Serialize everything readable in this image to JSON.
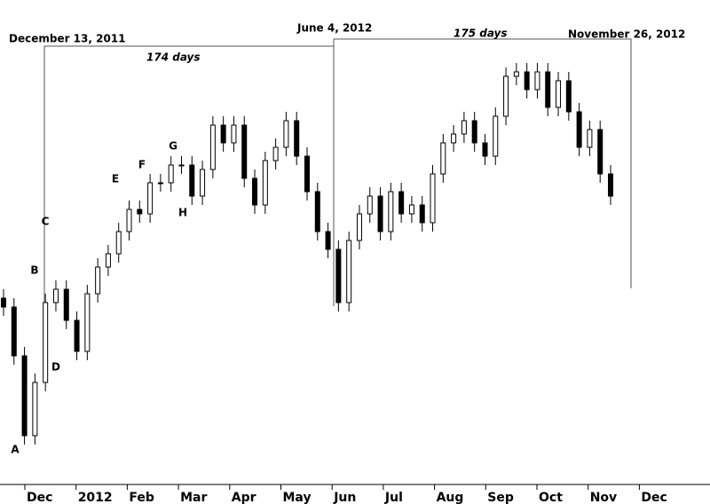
{
  "chart_data": {
    "type": "candlestick",
    "categories": [
      "Dec",
      "2012",
      "Feb",
      "Mar",
      "Apr",
      "May",
      "Jun",
      "Jul",
      "Aug",
      "Sep",
      "Oct",
      "Nov",
      "Dec"
    ],
    "ylim": [
      0,
      109.2
    ],
    "open": [
      42,
      40,
      29,
      11,
      23,
      41,
      44,
      37,
      30,
      43,
      49,
      52,
      57,
      62,
      61,
      68,
      68,
      72,
      72,
      65,
      71,
      81,
      77,
      81,
      69,
      63,
      73,
      76,
      82,
      74,
      66,
      57,
      53,
      41,
      55,
      61,
      65,
      57,
      66,
      61,
      63,
      59,
      70,
      77,
      79,
      82,
      77,
      74,
      83,
      92,
      93,
      89,
      93,
      85,
      91,
      84,
      76,
      80,
      70
    ],
    "high": [
      44,
      42,
      31,
      25,
      43,
      46,
      46,
      39,
      45,
      51,
      54,
      59,
      64,
      64,
      70,
      70,
      74,
      74,
      74,
      73,
      83,
      83,
      83,
      83,
      71,
      75,
      78,
      84,
      84,
      76,
      68,
      59,
      55,
      57,
      63,
      67,
      67,
      68,
      68,
      65,
      65,
      72,
      79,
      81,
      84,
      84,
      79,
      85,
      94,
      95,
      95,
      95,
      95,
      93,
      93,
      86,
      82,
      82,
      72
    ],
    "low": [
      38,
      27,
      9,
      9,
      21,
      39,
      35,
      28,
      28,
      41,
      47,
      50,
      55,
      59,
      59,
      66,
      66,
      70,
      63,
      63,
      69,
      75,
      75,
      67,
      61,
      61,
      71,
      74,
      72,
      64,
      55,
      51,
      39,
      39,
      53,
      59,
      55,
      55,
      59,
      59,
      57,
      57,
      68,
      75,
      77,
      75,
      72,
      72,
      81,
      90,
      87,
      87,
      83,
      83,
      82,
      74,
      74,
      68,
      63
    ],
    "close": [
      40,
      29,
      11,
      23,
      41,
      44,
      37,
      30,
      43,
      49,
      52,
      57,
      62,
      61,
      68,
      68,
      72,
      72,
      65,
      71,
      81,
      77,
      81,
      69,
      63,
      73,
      76,
      82,
      74,
      66,
      57,
      53,
      41,
      55,
      61,
      65,
      57,
      66,
      61,
      63,
      59,
      70,
      77,
      79,
      82,
      77,
      74,
      83,
      92,
      93,
      89,
      93,
      85,
      91,
      84,
      76,
      80,
      70,
      65
    ],
    "point_labels": [
      "A",
      "B",
      "C",
      "D",
      "E",
      "F",
      "G",
      "H"
    ],
    "annotations": [
      "December 13, 2011",
      "174 days",
      "June 4, 2012",
      "175 days",
      "November 26, 2012"
    ]
  }
}
